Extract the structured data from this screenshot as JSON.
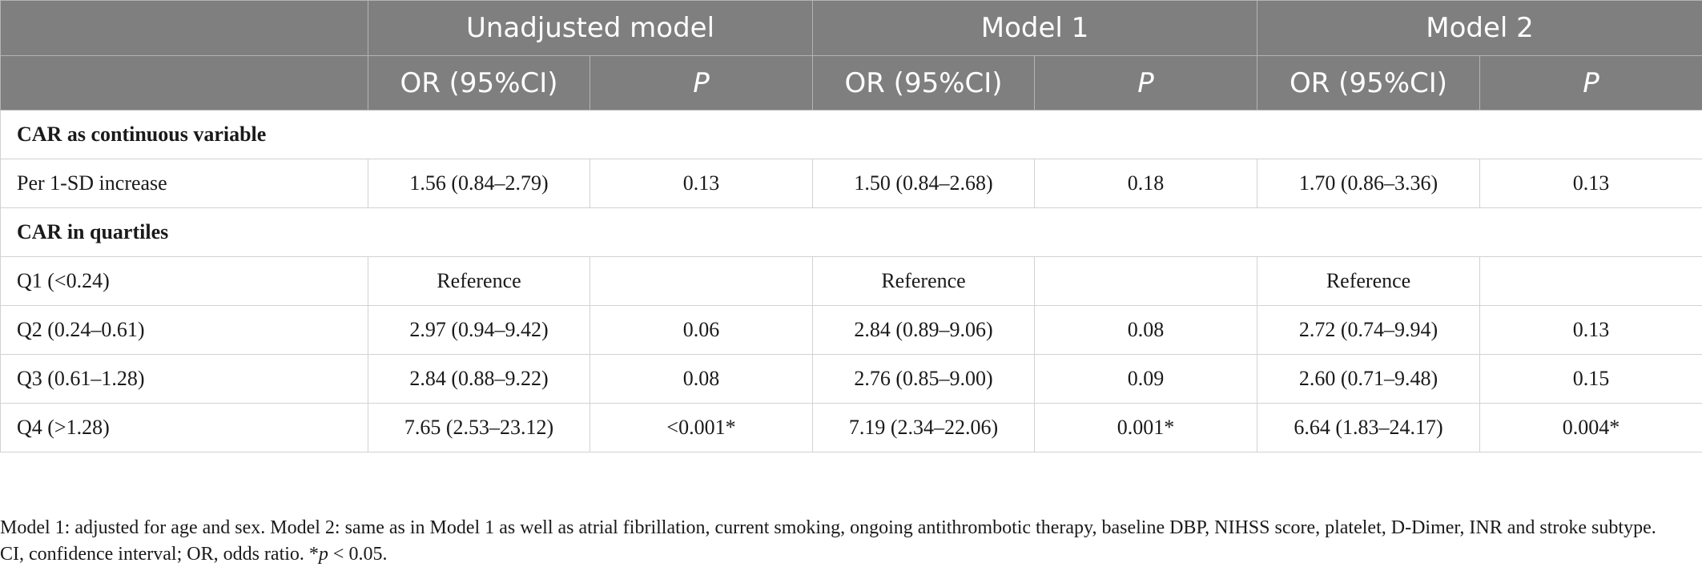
{
  "headers": {
    "groups": [
      "Unadjusted model",
      "Model 1",
      "Model 2"
    ],
    "or_label": "OR (95%CI)",
    "p_label": "P"
  },
  "sections": {
    "continuous": "CAR as continuous variable",
    "quartiles": "CAR in quartiles"
  },
  "rows": [
    {
      "label": "Per 1-SD increase",
      "c": [
        "1.56 (0.84–2.79)",
        "0.13",
        "1.50 (0.84–2.68)",
        "0.18",
        "1.70 (0.86–3.36)",
        "0.13"
      ]
    },
    {
      "label": "Q1 (<0.24)",
      "c": [
        "Reference",
        "",
        "Reference",
        "",
        "Reference",
        ""
      ]
    },
    {
      "label": "Q2 (0.24–0.61)",
      "c": [
        "2.97 (0.94–9.42)",
        "0.06",
        "2.84 (0.89–9.06)",
        "0.08",
        "2.72 (0.74–9.94)",
        "0.13"
      ]
    },
    {
      "label": "Q3 (0.61–1.28)",
      "c": [
        "2.84 (0.88–9.22)",
        "0.08",
        "2.76 (0.85–9.00)",
        "0.09",
        "2.60 (0.71–9.48)",
        "0.15"
      ]
    },
    {
      "label": "Q4 (>1.28)",
      "c": [
        "7.65 (2.53–23.12)",
        "<0.001*",
        "7.19 (2.34–22.06)",
        "0.001*",
        "6.64 (1.83–24.17)",
        "0.004*"
      ]
    }
  ],
  "footnote": {
    "text": "Model 1: adjusted for age and sex. Model 2: same as in Model 1 as well as atrial fibrillation, current smoking, ongoing antithrombotic therapy, baseline DBP, NIHSS score, platelet, D-Dimer, INR and stroke subtype. CI, confidence interval; OR, odds ratio. *",
    "p_symbol": "p",
    "sig": " < 0.05."
  }
}
